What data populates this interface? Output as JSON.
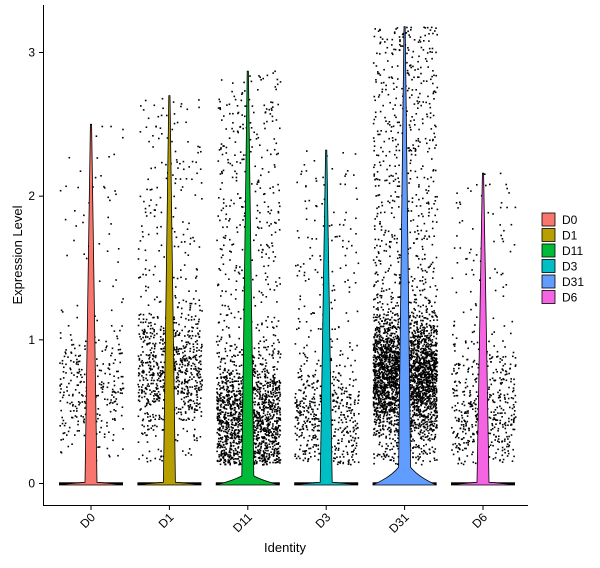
{
  "chart_data": {
    "type": "violin",
    "xlabel": "Identity",
    "ylabel": "Expression Level",
    "ylim": [
      -0.16,
      3.35
    ],
    "yticks": [
      0,
      1,
      2,
      3
    ],
    "grid": false,
    "legend_position": "right",
    "categories": [
      "D0",
      "D1",
      "D11",
      "D3",
      "D31",
      "D6"
    ],
    "series": [
      {
        "name": "D0",
        "color": "#F8766D",
        "max": 2.5,
        "violin_peak": 0.0,
        "nonzero_points": 350,
        "nonzero_center": 0.7
      },
      {
        "name": "D1",
        "color": "#B79F00",
        "max": 2.7,
        "violin_peak": 0.0,
        "nonzero_points": 950,
        "nonzero_center": 0.8
      },
      {
        "name": "D11",
        "color": "#00BA38",
        "max": 2.87,
        "violin_peak": 0.06,
        "nonzero_points": 1900,
        "nonzero_center": 0.45
      },
      {
        "name": "D3",
        "color": "#00BFC4",
        "max": 2.32,
        "violin_peak": 0.0,
        "nonzero_points": 650,
        "nonzero_center": 0.45
      },
      {
        "name": "D31",
        "color": "#619CFF",
        "max": 3.18,
        "violin_peak": 0.12,
        "nonzero_points": 3600,
        "nonzero_center": 0.75
      },
      {
        "name": "D6",
        "color": "#F564E3",
        "max": 2.16,
        "violin_peak": 0.0,
        "nonzero_points": 550,
        "nonzero_center": 0.5
      }
    ]
  }
}
